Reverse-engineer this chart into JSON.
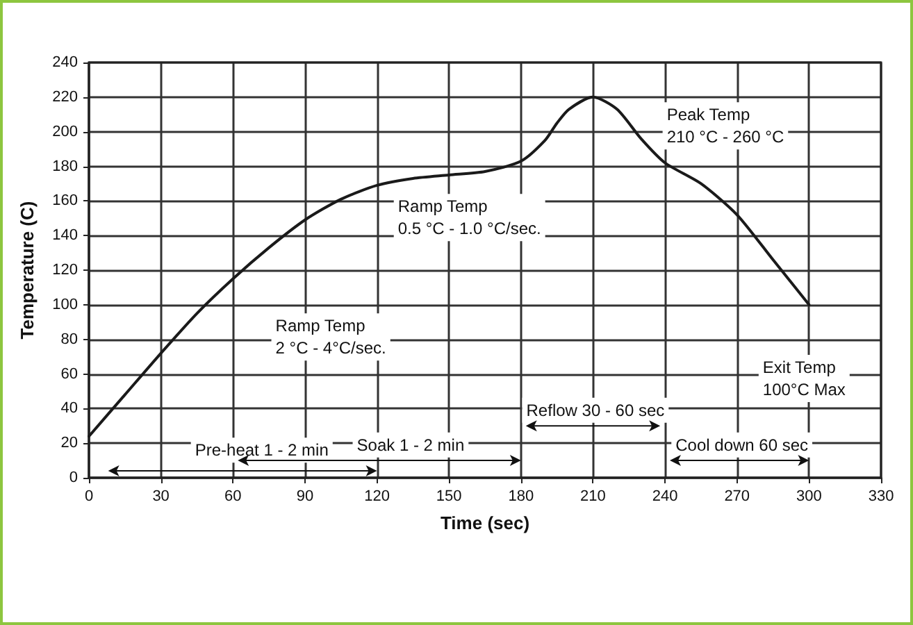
{
  "chart_data": {
    "type": "line",
    "xlabel": "Time (sec)",
    "ylabel": "Temperature (C)",
    "x": [
      0,
      15,
      30,
      45,
      60,
      75,
      90,
      105,
      120,
      135,
      150,
      165,
      180,
      190,
      195,
      200,
      210,
      220,
      230,
      240,
      255,
      270,
      285,
      300
    ],
    "series": [
      {
        "color": "#1a1a1a",
        "values": [
          24,
          48,
          72,
          95,
          115,
          133,
          149,
          161,
          169,
          173,
          175,
          177,
          183,
          195,
          205,
          213,
          220,
          213,
          196,
          182,
          170,
          152,
          126,
          100
        ]
      }
    ],
    "xlim": [
      0,
      330
    ],
    "xticks": [
      0,
      30,
      60,
      90,
      120,
      150,
      180,
      210,
      240,
      270,
      300,
      330
    ],
    "ylim": [
      0,
      240
    ],
    "yticks": [
      0,
      20,
      40,
      60,
      80,
      100,
      120,
      140,
      160,
      180,
      200,
      220,
      240
    ],
    "grid": true,
    "marker": "none",
    "line_style": "solid",
    "annotations": [
      "Ramp Temp\n2 °C - 4°C/sec.",
      "Ramp Temp\n0.5 °C - 1.0 °C/sec.",
      "Peak Temp\n210 °C - 260 °C",
      "Exit Temp\n100°C Max",
      "Reflow 30 - 60 sec",
      "Soak 1 - 2 min",
      "Pre-heat 1 - 2 min",
      "Cool down 60 sec"
    ]
  }
}
